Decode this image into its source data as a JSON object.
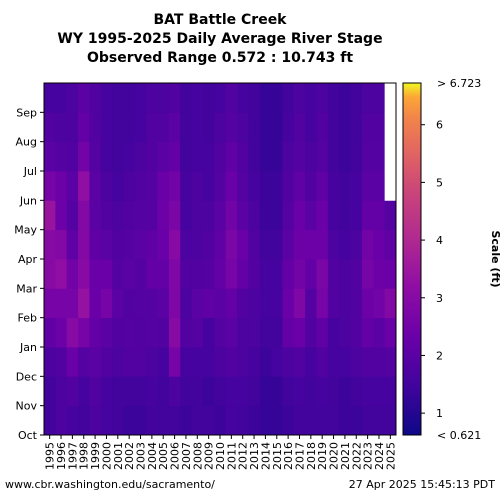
{
  "header": {
    "line1": "BAT Battle Creek",
    "line2": "WY 1995-2025 Daily Average River Stage",
    "line3": "Observed Range 0.572 : 10.743 ft"
  },
  "footer": {
    "source": "www.cbr.washington.edu/sacramento/",
    "timestamp": "27 Apr 2025 15:45:13 PDT"
  },
  "chart_data": {
    "type": "heatmap",
    "title": "BAT Battle Creek WY 1995-2025 Daily Average River Stage",
    "subtitle": "Observed Range 0.572 : 10.743 ft",
    "x": [
      "1995",
      "1996",
      "1997",
      "1998",
      "1999",
      "2000",
      "2001",
      "2002",
      "2003",
      "2004",
      "2005",
      "2006",
      "2007",
      "2008",
      "2009",
      "2010",
      "2011",
      "2012",
      "2013",
      "2014",
      "2015",
      "2016",
      "2017",
      "2018",
      "2019",
      "2020",
      "2021",
      "2022",
      "2023",
      "2024",
      "2025"
    ],
    "y": [
      "Oct",
      "Nov",
      "Dec",
      "Jan",
      "Feb",
      "Mar",
      "Apr",
      "May",
      "Jun",
      "Jul",
      "Aug",
      "Sep"
    ],
    "colorbar": {
      "label": "Scale (ft)",
      "min": 0.621,
      "max": 6.723,
      "ticks": [
        1,
        2,
        3,
        4,
        5,
        6
      ],
      "top_label": "> 6.723",
      "bottom_label": "< 0.621",
      "colormap": "plasma"
    },
    "monthly_median_ft": [
      [
        1.5,
        1.5,
        1.7,
        2.1,
        2.6,
        3.0,
        3.0,
        3.4,
        2.6,
        2.0,
        1.8,
        1.6
      ],
      [
        1.7,
        1.7,
        1.8,
        2.4,
        2.6,
        3.2,
        2.9,
        2.4,
        2.4,
        1.9,
        1.7,
        1.6
      ],
      [
        1.6,
        1.8,
        2.3,
        3.0,
        2.6,
        2.5,
        2.1,
        1.9,
        2.0,
        1.8,
        1.7,
        1.7
      ],
      [
        1.5,
        1.6,
        1.9,
        2.6,
        3.3,
        3.0,
        2.9,
        2.9,
        3.2,
        2.5,
        2.2,
        2.0
      ],
      [
        1.7,
        1.8,
        2.0,
        2.2,
        2.3,
        2.3,
        2.1,
        2.0,
        2.0,
        1.9,
        1.8,
        1.8
      ],
      [
        1.6,
        1.6,
        1.8,
        2.0,
        2.6,
        2.3,
        2.0,
        1.8,
        1.7,
        1.6,
        1.6,
        1.6
      ],
      [
        1.5,
        1.5,
        1.7,
        1.8,
        2.0,
        1.9,
        1.8,
        1.7,
        1.6,
        1.5,
        1.5,
        1.5
      ],
      [
        1.4,
        1.5,
        1.8,
        1.9,
        1.8,
        2.0,
        1.9,
        1.8,
        1.7,
        1.6,
        1.5,
        1.5
      ],
      [
        1.4,
        1.5,
        1.8,
        1.8,
        1.9,
        1.9,
        2.0,
        1.9,
        1.8,
        1.7,
        1.6,
        1.6
      ],
      [
        1.5,
        1.6,
        1.7,
        1.9,
        1.9,
        2.2,
        2.1,
        1.9,
        1.9,
        1.8,
        1.8,
        1.7
      ],
      [
        1.5,
        1.5,
        1.6,
        1.8,
        2.0,
        2.2,
        2.3,
        2.4,
        2.3,
        2.0,
        1.8,
        1.7
      ],
      [
        1.5,
        1.7,
        2.6,
        3.0,
        2.8,
        2.8,
        3.0,
        2.7,
        2.5,
        2.2,
        2.0,
        1.8
      ],
      [
        1.4,
        1.5,
        1.6,
        1.8,
        1.7,
        1.8,
        1.7,
        1.6,
        1.6,
        1.5,
        1.5,
        1.5
      ],
      [
        1.5,
        1.5,
        1.6,
        1.9,
        2.0,
        1.8,
        1.7,
        1.7,
        1.7,
        1.6,
        1.6,
        1.6
      ],
      [
        1.5,
        1.4,
        1.6,
        1.6,
        2.1,
        1.9,
        1.8,
        1.7,
        1.6,
        1.6,
        1.5,
        1.5
      ],
      [
        1.4,
        1.5,
        1.7,
        1.9,
        2.0,
        2.2,
        2.1,
        2.0,
        1.9,
        1.8,
        1.7,
        1.6
      ],
      [
        1.6,
        1.6,
        1.8,
        2.0,
        2.2,
        2.6,
        2.7,
        2.5,
        2.3,
        2.1,
        1.9,
        1.8
      ],
      [
        1.5,
        1.6,
        1.7,
        1.7,
        1.8,
        2.2,
        2.3,
        2.0,
        1.9,
        1.8,
        1.7,
        1.6
      ],
      [
        1.4,
        1.5,
        1.6,
        1.7,
        1.7,
        1.8,
        1.8,
        1.7,
        1.6,
        1.5,
        1.5,
        1.5
      ],
      [
        1.3,
        1.3,
        1.4,
        1.5,
        1.6,
        1.6,
        1.5,
        1.4,
        1.4,
        1.3,
        1.3,
        1.3
      ],
      [
        1.3,
        1.3,
        1.6,
        1.5,
        1.6,
        1.6,
        1.5,
        1.4,
        1.4,
        1.3,
        1.3,
        1.3
      ],
      [
        1.4,
        1.5,
        1.7,
        2.2,
        2.3,
        2.2,
        2.0,
        1.9,
        1.8,
        1.7,
        1.6,
        1.5
      ],
      [
        1.5,
        1.6,
        1.8,
        2.3,
        2.8,
        2.5,
        2.4,
        2.3,
        2.1,
        1.9,
        1.8,
        1.7
      ],
      [
        1.5,
        1.5,
        1.6,
        1.8,
        1.9,
        2.2,
        2.4,
        2.0,
        1.8,
        1.7,
        1.6,
        1.6
      ],
      [
        1.5,
        1.6,
        1.8,
        2.1,
        2.6,
        2.7,
        2.4,
        2.3,
        2.1,
        1.9,
        1.8,
        1.7
      ],
      [
        1.5,
        1.5,
        1.6,
        1.6,
        1.8,
        1.8,
        1.7,
        1.6,
        1.6,
        1.5,
        1.5,
        1.5
      ],
      [
        1.4,
        1.4,
        1.6,
        1.7,
        1.7,
        1.7,
        1.6,
        1.5,
        1.5,
        1.4,
        1.4,
        1.4
      ],
      [
        1.4,
        1.5,
        1.7,
        1.8,
        1.8,
        1.8,
        1.7,
        1.6,
        1.6,
        1.5,
        1.5,
        1.5
      ],
      [
        1.5,
        1.6,
        1.8,
        2.2,
        2.4,
        2.6,
        2.5,
        2.2,
        2.0,
        1.9,
        1.8,
        1.7
      ],
      [
        1.5,
        1.6,
        1.8,
        2.0,
        2.5,
        2.4,
        2.3,
        2.2,
        2.0,
        1.9,
        1.8,
        1.7
      ],
      [
        1.5,
        1.6,
        1.9,
        2.3,
        2.9,
        2.3,
        2.1,
        1.9,
        null,
        null,
        null,
        null
      ]
    ]
  }
}
